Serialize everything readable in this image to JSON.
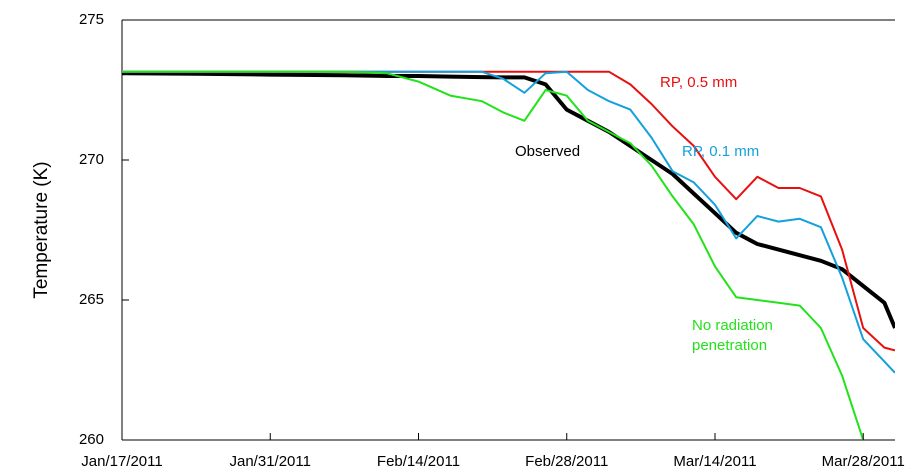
{
  "chart_data": {
    "type": "line",
    "y_label": "Temperature (K)",
    "xlim": [
      "2011-01-17",
      "2011-03-31"
    ],
    "xticks": [
      {
        "value": "2011-01-17",
        "label": "Jan/17/2011"
      },
      {
        "value": "2011-01-31",
        "label": "Jan/31/2011"
      },
      {
        "value": "2011-02-14",
        "label": "Feb/14/2011"
      },
      {
        "value": "2011-02-28",
        "label": "Feb/28/2011"
      },
      {
        "value": "2011-03-14",
        "label": "Mar/14/2011"
      },
      {
        "value": "2011-03-28",
        "label": "Mar/28/2011"
      }
    ],
    "ylim": [
      260,
      275
    ],
    "yticks": [
      260,
      265,
      270,
      275
    ],
    "x": [
      "2011-01-17",
      "2011-01-24",
      "2011-01-31",
      "2011-02-07",
      "2011-02-11",
      "2011-02-14",
      "2011-02-17",
      "2011-02-20",
      "2011-02-22",
      "2011-02-24",
      "2011-02-26",
      "2011-02-28",
      "2011-03-02",
      "2011-03-04",
      "2011-03-06",
      "2011-03-08",
      "2011-03-10",
      "2011-03-12",
      "2011-03-14",
      "2011-03-16",
      "2011-03-18",
      "2011-03-20",
      "2011-03-22",
      "2011-03-24",
      "2011-03-26",
      "2011-03-28",
      "2011-03-30",
      "2011-03-31"
    ],
    "series": [
      {
        "name": "Observed",
        "color": "#000000",
        "values": [
          273.1,
          273.08,
          273.05,
          273.03,
          273.0,
          273.0,
          272.98,
          272.96,
          272.95,
          272.95,
          272.7,
          271.8,
          271.4,
          271.0,
          270.5,
          270.0,
          269.5,
          268.8,
          268.1,
          267.4,
          267.0,
          266.8,
          266.6,
          266.4,
          266.1,
          265.5,
          264.9,
          264.0
        ]
      },
      {
        "name": "RP, 0.5 mm",
        "color": "#e8100f",
        "values": [
          273.15,
          273.15,
          273.15,
          273.15,
          273.15,
          273.15,
          273.15,
          273.15,
          273.15,
          273.15,
          273.15,
          273.15,
          273.15,
          273.15,
          272.7,
          272.0,
          271.2,
          270.5,
          269.4,
          268.6,
          269.4,
          269.0,
          269.0,
          268.7,
          266.8,
          264.0,
          263.3,
          263.2
        ]
      },
      {
        "name": "RP, 0.1 mm",
        "color": "#13a0dc",
        "values": [
          273.15,
          273.15,
          273.15,
          273.15,
          273.15,
          273.15,
          273.15,
          273.15,
          272.9,
          272.4,
          273.1,
          273.15,
          272.5,
          272.1,
          271.8,
          270.8,
          269.6,
          269.2,
          268.4,
          267.2,
          268.0,
          267.8,
          267.9,
          267.6,
          265.8,
          263.6,
          262.8,
          262.4
        ]
      },
      {
        "name": "No radiation penetration",
        "color": "#22e21a",
        "values": [
          273.15,
          273.15,
          273.15,
          273.15,
          273.1,
          272.8,
          272.3,
          272.1,
          271.7,
          271.4,
          272.5,
          272.3,
          271.4,
          271.0,
          270.6,
          269.8,
          268.7,
          267.7,
          266.2,
          265.1,
          265.0,
          264.9,
          264.8,
          264.0,
          262.3,
          260.0,
          null,
          null
        ]
      }
    ]
  }
}
